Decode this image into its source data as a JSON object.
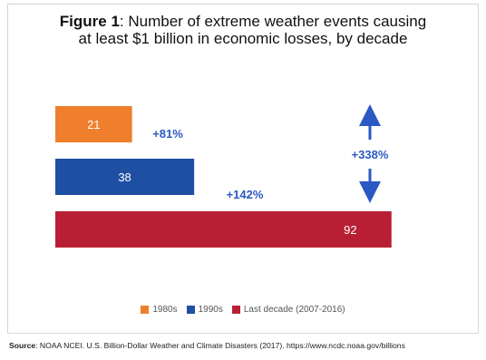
{
  "title": {
    "bold": "Figure 1",
    "line1_rest": ": Number of extreme weather events causing",
    "line2": "at least $1 billion in economic losses, by decade"
  },
  "chart_data": {
    "type": "bar",
    "orientation": "horizontal",
    "categories": [
      "1980s",
      "1990s",
      "Last decade (2007-2016)"
    ],
    "values": [
      21,
      38,
      92
    ],
    "colors": [
      "#ef7f2d",
      "#1f4fa3",
      "#b81f35"
    ],
    "annotations": [
      {
        "text": "+81%",
        "between": [
          "1980s",
          "1990s"
        ]
      },
      {
        "text": "+142%",
        "between": [
          "1990s",
          "Last decade (2007-2016)"
        ]
      },
      {
        "text": "+338%",
        "between": [
          "1980s",
          "Last decade (2007-2016)"
        ]
      }
    ],
    "accent_color": "#2b59c3",
    "legend_position": "bottom"
  },
  "source": {
    "label": "Source",
    "text": ": NOAA NCEI. U.S. Billion-Dollar Weather and Climate Disasters (2017). https://www.ncdc.noaa.gov/billions"
  }
}
